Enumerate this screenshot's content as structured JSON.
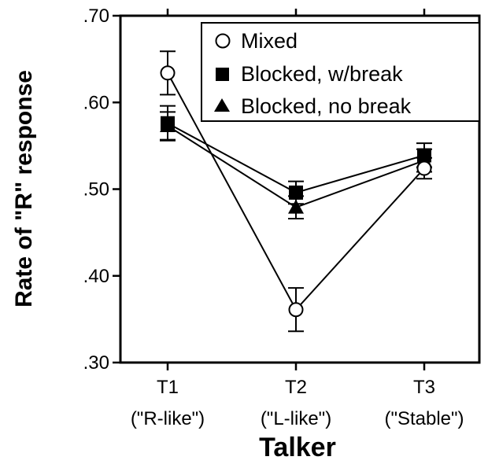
{
  "chart_data": {
    "type": "line",
    "title": "",
    "xlabel": "Talker",
    "ylabel": "Rate of \"R\" response",
    "categories": [
      "T1",
      "T2",
      "T3"
    ],
    "category_sublabels": [
      "(\"R-like\")",
      "(\"L-like\")",
      "(\"Stable\")"
    ],
    "ylim": [
      0.3,
      0.7
    ],
    "yticks": [
      0.3,
      0.4,
      0.5,
      0.6,
      0.7
    ],
    "ytick_labels": [
      ".30",
      ".40",
      ".50",
      ".60",
      ".70"
    ],
    "grid": false,
    "legend_position": "top-right",
    "series": [
      {
        "name": "Mixed",
        "marker": "open-circle",
        "values": [
          0.634,
          0.361,
          0.524
        ],
        "errors": [
          0.025,
          0.025,
          0.012
        ]
      },
      {
        "name": "Blocked, w/break",
        "marker": "filled-square",
        "values": [
          0.576,
          0.496,
          0.539
        ],
        "errors": [
          0.02,
          0.013,
          0.014
        ]
      },
      {
        "name": "Blocked, no break",
        "marker": "filled-triangle",
        "values": [
          0.573,
          0.479,
          0.533
        ],
        "errors": [
          0.016,
          0.013,
          0.013
        ]
      }
    ]
  }
}
